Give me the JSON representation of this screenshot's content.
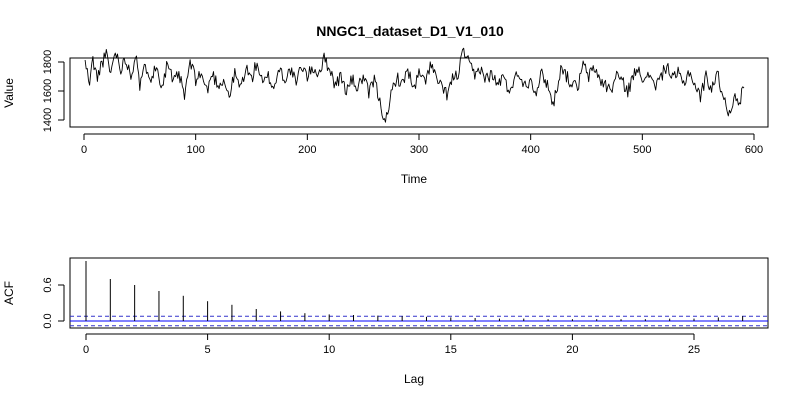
{
  "title": "NNGC1_dataset_D1_V1_010",
  "colors": {
    "series": "#000000",
    "confidence_band": "#3333cc",
    "zero_line": "#0000ff"
  },
  "chart_data": [
    {
      "type": "line",
      "title": "NNGC1_dataset_D1_V1_010",
      "xlabel": "Time",
      "ylabel": "Value",
      "xlim": [
        0,
        600
      ],
      "ylim": [
        1380,
        1900
      ],
      "xticks": [
        0,
        100,
        200,
        300,
        400,
        500,
        600
      ],
      "yticks": [
        1400,
        1600,
        1800
      ],
      "grid": false,
      "legend": "none",
      "n_points": 591,
      "anchors": {
        "x": [
          1,
          5,
          8,
          12,
          15,
          20,
          24,
          28,
          33,
          38,
          42,
          47,
          50,
          55,
          60,
          65,
          70,
          75,
          80,
          85,
          90,
          95,
          100,
          105,
          110,
          115,
          120,
          125,
          130,
          135,
          140,
          145,
          150,
          155,
          160,
          165,
          170,
          175,
          180,
          185,
          190,
          195,
          200,
          205,
          210,
          215,
          220,
          225,
          230,
          235,
          240,
          245,
          250,
          255,
          260,
          265,
          268,
          272,
          275,
          280,
          285,
          290,
          295,
          300,
          305,
          310,
          315,
          320,
          325,
          330,
          335,
          340,
          345,
          350,
          355,
          360,
          365,
          370,
          375,
          380,
          385,
          390,
          395,
          400,
          405,
          410,
          415,
          420,
          425,
          428,
          432,
          437,
          442,
          447,
          452,
          457,
          462,
          467,
          472,
          477,
          482,
          487,
          492,
          497,
          502,
          507,
          512,
          517,
          522,
          527,
          532,
          537,
          542,
          547,
          552,
          557,
          562,
          567,
          572,
          577,
          582,
          587,
          591
        ],
        "y": [
          1800,
          1650,
          1820,
          1680,
          1780,
          1850,
          1720,
          1880,
          1760,
          1820,
          1700,
          1880,
          1620,
          1780,
          1700,
          1760,
          1640,
          1800,
          1650,
          1720,
          1560,
          1800,
          1680,
          1720,
          1600,
          1720,
          1640,
          1680,
          1560,
          1720,
          1620,
          1760,
          1680,
          1800,
          1640,
          1700,
          1620,
          1760,
          1680,
          1750,
          1650,
          1780,
          1700,
          1760,
          1720,
          1820,
          1760,
          1640,
          1700,
          1600,
          1680,
          1620,
          1700,
          1580,
          1680,
          1520,
          1440,
          1400,
          1580,
          1700,
          1640,
          1760,
          1600,
          1720,
          1660,
          1780,
          1700,
          1620,
          1580,
          1680,
          1720,
          1880,
          1780,
          1700,
          1760,
          1680,
          1720,
          1640,
          1700,
          1600,
          1680,
          1720,
          1640,
          1680,
          1600,
          1720,
          1650,
          1500,
          1680,
          1780,
          1700,
          1650,
          1620,
          1780,
          1700,
          1760,
          1680,
          1640,
          1600,
          1720,
          1660,
          1600,
          1700,
          1780,
          1650,
          1720,
          1640,
          1700,
          1780,
          1680,
          1720,
          1650,
          1740,
          1640,
          1560,
          1700,
          1620,
          1720,
          1580,
          1450,
          1550,
          1500,
          1660
        ]
      }
    },
    {
      "type": "bar",
      "xlabel": "Lag",
      "ylabel": "ACF",
      "xlim": [
        -1,
        28
      ],
      "ylim": [
        -0.08,
        1.0
      ],
      "xticks": [
        0,
        5,
        10,
        15,
        20,
        25
      ],
      "yticks": [
        0.0,
        0.6
      ],
      "ytick_labels": [
        "0.0",
        "0.6"
      ],
      "grid": false,
      "legend": "none",
      "lags": [
        0,
        1,
        2,
        3,
        4,
        5,
        6,
        7,
        8,
        9,
        10,
        11,
        12,
        13,
        14,
        15,
        16,
        17,
        18,
        19,
        20,
        21,
        22,
        23,
        24,
        25,
        26,
        27
      ],
      "values": [
        1.0,
        0.7,
        0.6,
        0.5,
        0.42,
        0.33,
        0.27,
        0.2,
        0.16,
        0.13,
        0.11,
        0.1,
        0.09,
        0.08,
        0.07,
        0.06,
        0.05,
        0.04,
        0.04,
        0.03,
        0.03,
        0.03,
        0.03,
        0.03,
        0.04,
        0.04,
        0.06,
        0.08
      ],
      "confidence_interval": [
        -0.08,
        0.08
      ]
    }
  ]
}
